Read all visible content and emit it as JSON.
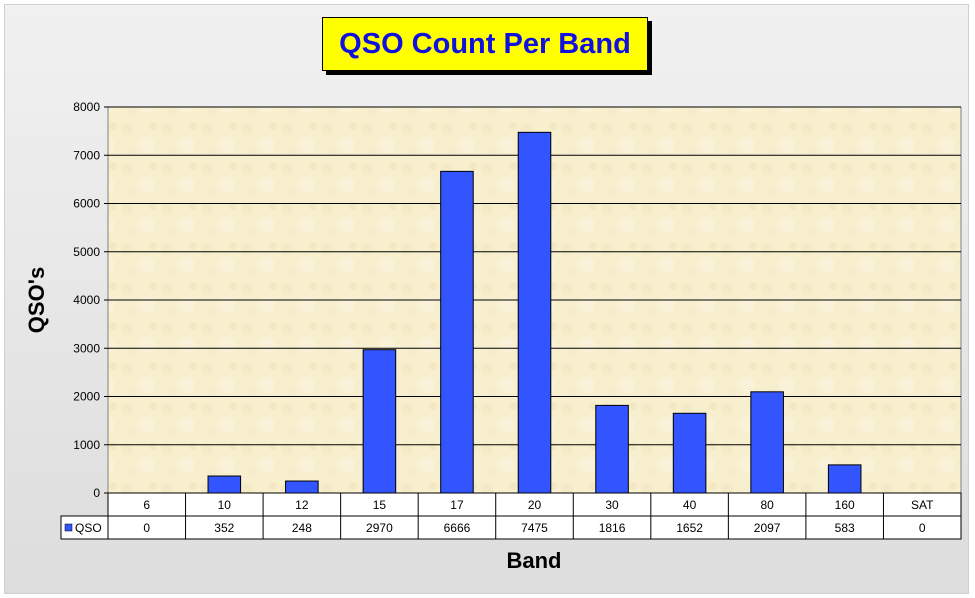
{
  "colors": {
    "bar": "#3355ff",
    "title_text": "#1010e0",
    "title_bg": "#ffff00",
    "plot_bg": "#f8efcf"
  },
  "chart_data": {
    "type": "bar",
    "title": "QSO Count Per Band",
    "xlabel": "Band",
    "ylabel": "QSO's",
    "categories": [
      "6",
      "10",
      "12",
      "15",
      "17",
      "20",
      "30",
      "40",
      "80",
      "160",
      "SAT"
    ],
    "series": [
      {
        "name": "QSO",
        "values": [
          0,
          352,
          248,
          2970,
          6666,
          7475,
          1816,
          1652,
          2097,
          583,
          0
        ]
      }
    ],
    "ylim": [
      0,
      8000
    ],
    "yticks": [
      0,
      1000,
      2000,
      3000,
      4000,
      5000,
      6000,
      7000,
      8000
    ],
    "grid": true,
    "legend": "data-table-left"
  }
}
